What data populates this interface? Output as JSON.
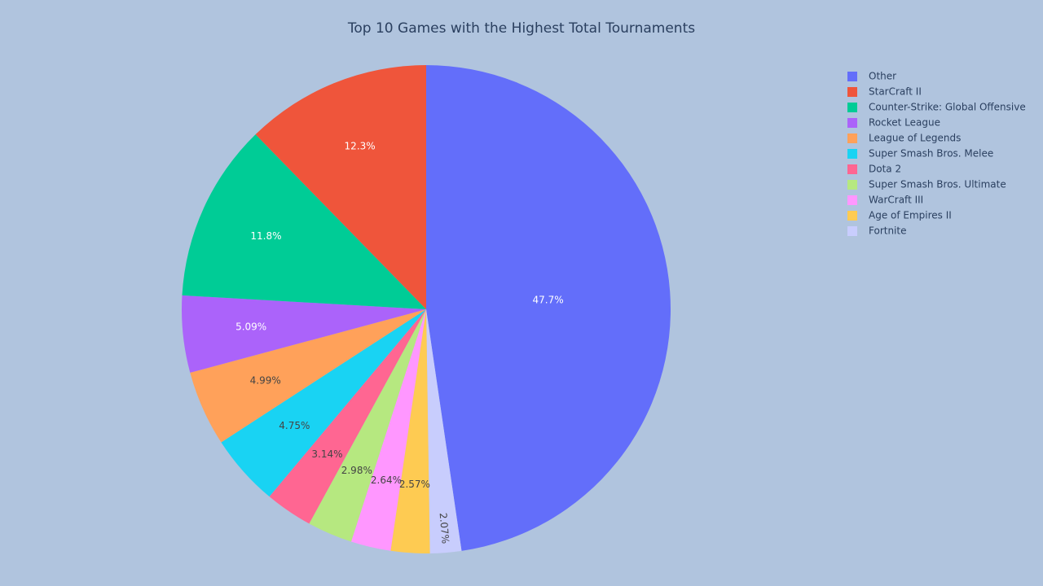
{
  "chart_data": {
    "type": "pie",
    "title": "Top 10 Games with the Highest Total Tournaments",
    "legend_position": "top-right",
    "direction": "clockwise",
    "slices": [
      {
        "label": "Other",
        "value": 47.7,
        "text": "47.7%",
        "color": "#636efa"
      },
      {
        "label": "Fortnite",
        "value": 2.07,
        "text": "2.07%",
        "color": "#c8cdfd"
      },
      {
        "label": "Age of Empires II",
        "value": 2.57,
        "text": "2.57%",
        "color": "#fecb52"
      },
      {
        "label": "WarCraft III",
        "value": 2.64,
        "text": "2.64%",
        "color": "#ff97ff"
      },
      {
        "label": "Super Smash Bros. Ultimate",
        "value": 2.98,
        "text": "2.98%",
        "color": "#b6e880"
      },
      {
        "label": "Dota 2",
        "value": 3.14,
        "text": "3.14%",
        "color": "#ff6692"
      },
      {
        "label": "Super Smash Bros. Melee",
        "value": 4.75,
        "text": "4.75%",
        "color": "#19d3f3"
      },
      {
        "label": "League of Legends",
        "value": 4.99,
        "text": "4.99%",
        "color": "#ffa15a"
      },
      {
        "label": "Rocket League",
        "value": 5.09,
        "text": "5.09%",
        "color": "#ab63fa"
      },
      {
        "label": "Counter-Strike: Global Offensive",
        "value": 11.8,
        "text": "11.8%",
        "color": "#00cc96"
      },
      {
        "label": "StarCraft II",
        "value": 12.3,
        "text": "12.3%",
        "color": "#ef553b"
      }
    ],
    "legend": [
      {
        "label": "Other",
        "color": "#636efa"
      },
      {
        "label": "StarCraft II",
        "color": "#ef553b"
      },
      {
        "label": "Counter-Strike: Global Offensive",
        "color": "#00cc96"
      },
      {
        "label": "Rocket League",
        "color": "#ab63fa"
      },
      {
        "label": "League of Legends",
        "color": "#ffa15a"
      },
      {
        "label": "Super Smash Bros. Melee",
        "color": "#19d3f3"
      },
      {
        "label": "Dota 2",
        "color": "#ff6692"
      },
      {
        "label": "Super Smash Bros. Ultimate",
        "color": "#b6e880"
      },
      {
        "label": "WarCraft III",
        "color": "#ff97ff"
      },
      {
        "label": "Age of Empires II",
        "color": "#fecb52"
      },
      {
        "label": "Fortnite",
        "color": "#c8cdfd"
      }
    ]
  }
}
